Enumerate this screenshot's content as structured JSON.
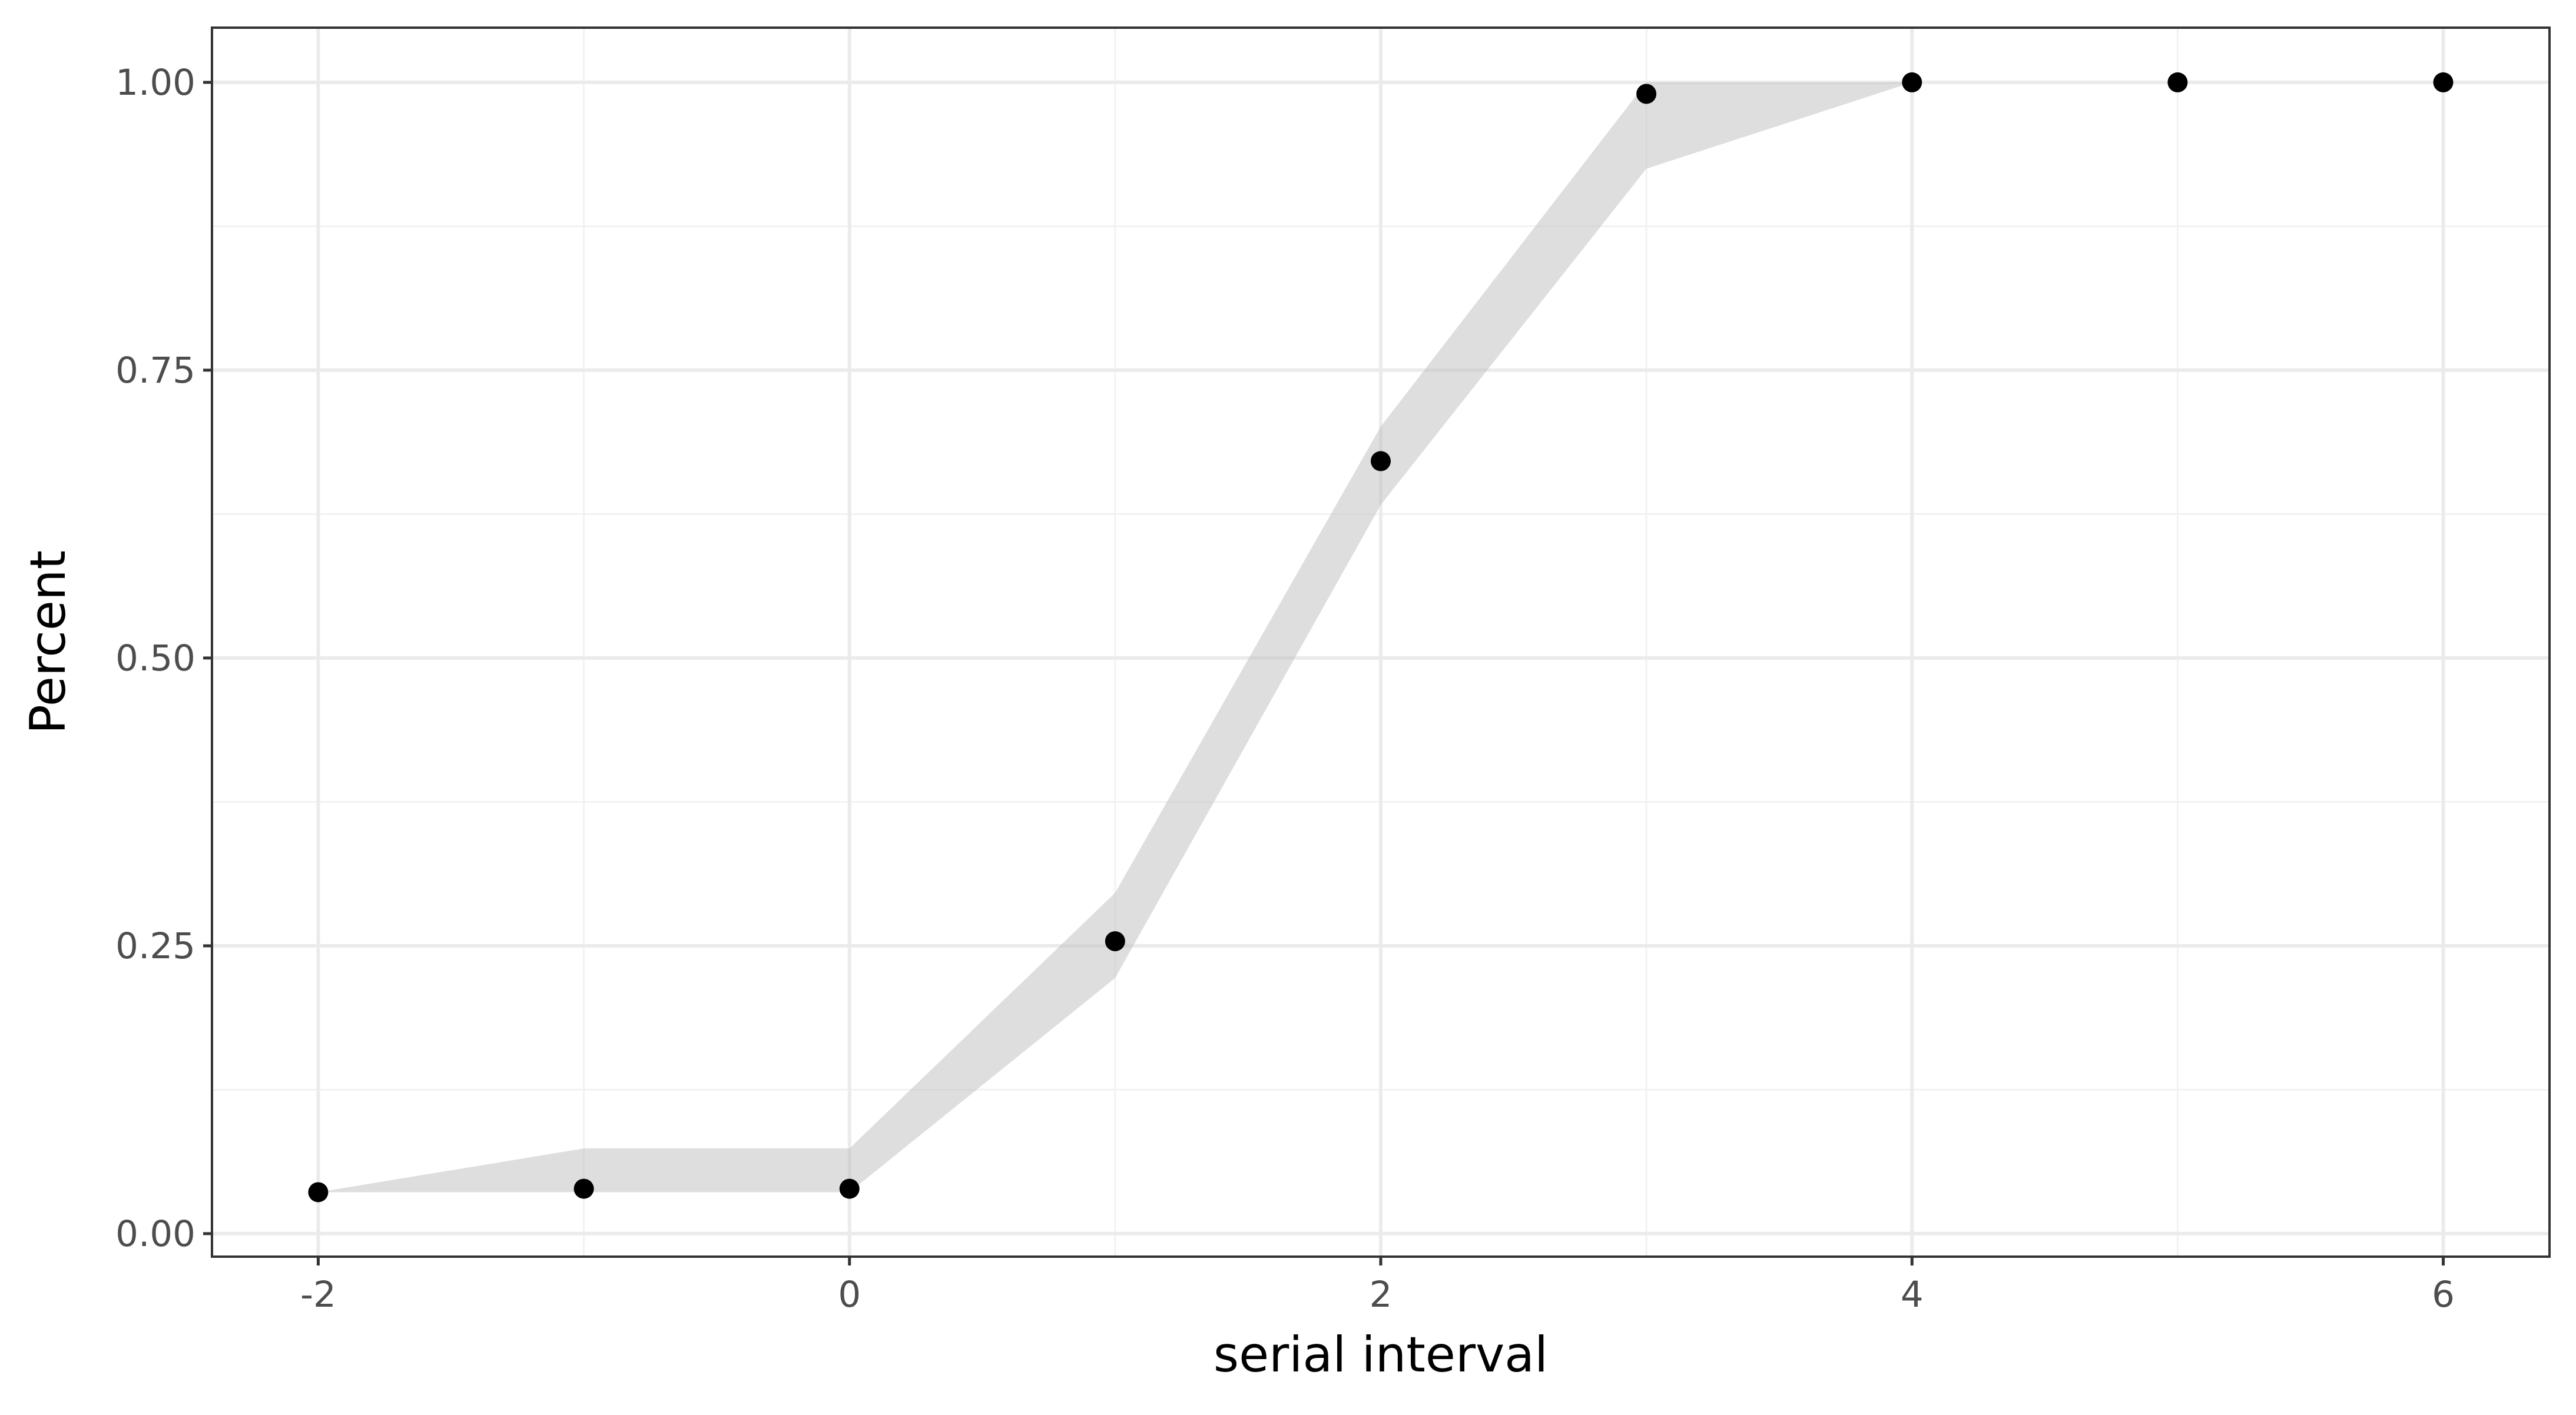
{
  "chart_data": {
    "type": "scatter",
    "title": "",
    "xlabel": "serial interval",
    "ylabel": "Percent",
    "xlim": [
      -2.4,
      6.4
    ],
    "ylim": [
      -0.02,
      1.0475
    ],
    "x_ticks": [
      -2,
      0,
      2,
      4,
      6
    ],
    "x_tick_labels": [
      "-2",
      "0",
      "2",
      "4",
      "6"
    ],
    "x_minor": [
      -1,
      1,
      3,
      5
    ],
    "y_ticks": [
      0,
      0.25,
      0.5,
      0.75,
      1.0
    ],
    "y_tick_labels": [
      "0.00",
      "0.25",
      "0.50",
      "0.75",
      "1.00"
    ],
    "y_minor": [
      0.125,
      0.375,
      0.625,
      0.875
    ],
    "grid": true,
    "legend": "none",
    "points": {
      "x": [
        -2,
        -1,
        0,
        1,
        2,
        3,
        4,
        5,
        6
      ],
      "y": [
        0.036,
        0.039,
        0.039,
        0.254,
        0.671,
        0.99,
        1.0,
        1.0,
        1.0
      ],
      "color": "#000000"
    },
    "ribbon": {
      "x": [
        -2,
        -1,
        0,
        1,
        2,
        3,
        4
      ],
      "lower": [
        0.036,
        0.036,
        0.036,
        0.222,
        0.633,
        0.925,
        1.0
      ],
      "upper": [
        0.036,
        0.074,
        0.074,
        0.296,
        0.701,
        1.0,
        1.0
      ],
      "color": "#bebebe",
      "opacity": 0.5
    }
  }
}
